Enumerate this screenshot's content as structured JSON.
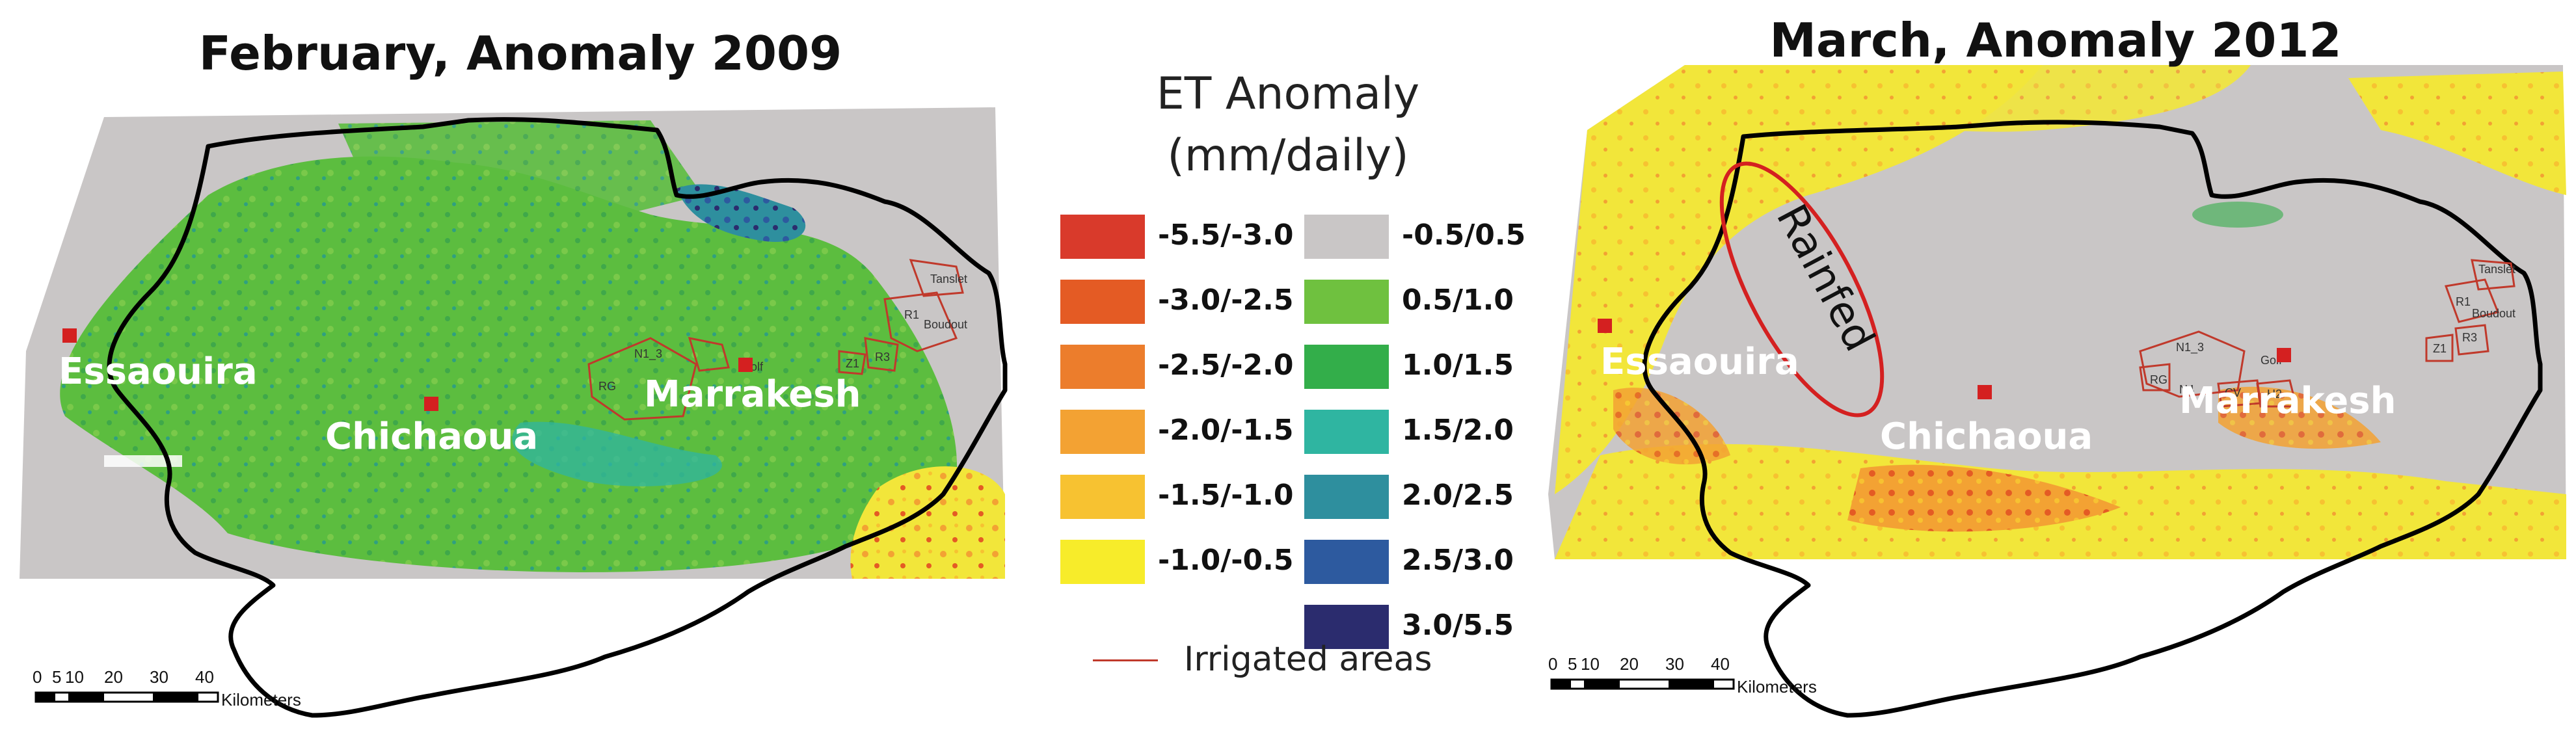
{
  "maps": {
    "left": {
      "title": "February, Anomaly 2009",
      "cities": [
        "Essaouira",
        "Chichaoua",
        "Marrakesh"
      ],
      "plot_labels": [
        "N1_3",
        "RG",
        "Golf",
        "Z1",
        "R3",
        "R1",
        "Boudout",
        "Tanslet"
      ]
    },
    "right": {
      "title": "March, Anomaly 2012",
      "cities": [
        "Essaouira",
        "Chichaoua",
        "Marrakesh"
      ],
      "plot_labels": [
        "N1_3",
        "RG",
        "Golf",
        "N4",
        "CV",
        "H2",
        "Z1",
        "R3",
        "R1",
        "Boudout",
        "Tanslet"
      ],
      "annotation": "Rainfed"
    }
  },
  "scale_bar": {
    "ticks": [
      "0",
      "5",
      "10",
      "20",
      "30",
      "40"
    ],
    "unit": "Kilometers"
  },
  "legend": {
    "title_line1": "ET Anomaly",
    "title_line2": "(mm/daily)",
    "negative": [
      {
        "label": "-5.5/-3.0",
        "color": "#d93a2b"
      },
      {
        "label": "-3.0/-2.5",
        "color": "#e45b24"
      },
      {
        "label": "-2.5/-2.0",
        "color": "#ec7d2c"
      },
      {
        "label": "-2.0/-1.5",
        "color": "#f3a233"
      },
      {
        "label": "-1.5/-1.0",
        "color": "#f7c231"
      },
      {
        "label": "-1.0/-0.5",
        "color": "#f7ec2a"
      }
    ],
    "positive": [
      {
        "label": "-0.5/0.5",
        "color": "#c9c6c6"
      },
      {
        "label": "0.5/1.0",
        "color": "#6fc13f"
      },
      {
        "label": "1.0/1.5",
        "color": "#33ae4a"
      },
      {
        "label": "1.5/2.0",
        "color": "#2fb5a1"
      },
      {
        "label": "2.0/2.5",
        "color": "#2e8f9e"
      },
      {
        "label": "2.5/3.0",
        "color": "#2d5a9f"
      },
      {
        "label": "3.0/5.5",
        "color": "#2b2c6e"
      }
    ],
    "irrigated_label": "Irrigated areas",
    "irrigated_color": "#c0392b"
  }
}
